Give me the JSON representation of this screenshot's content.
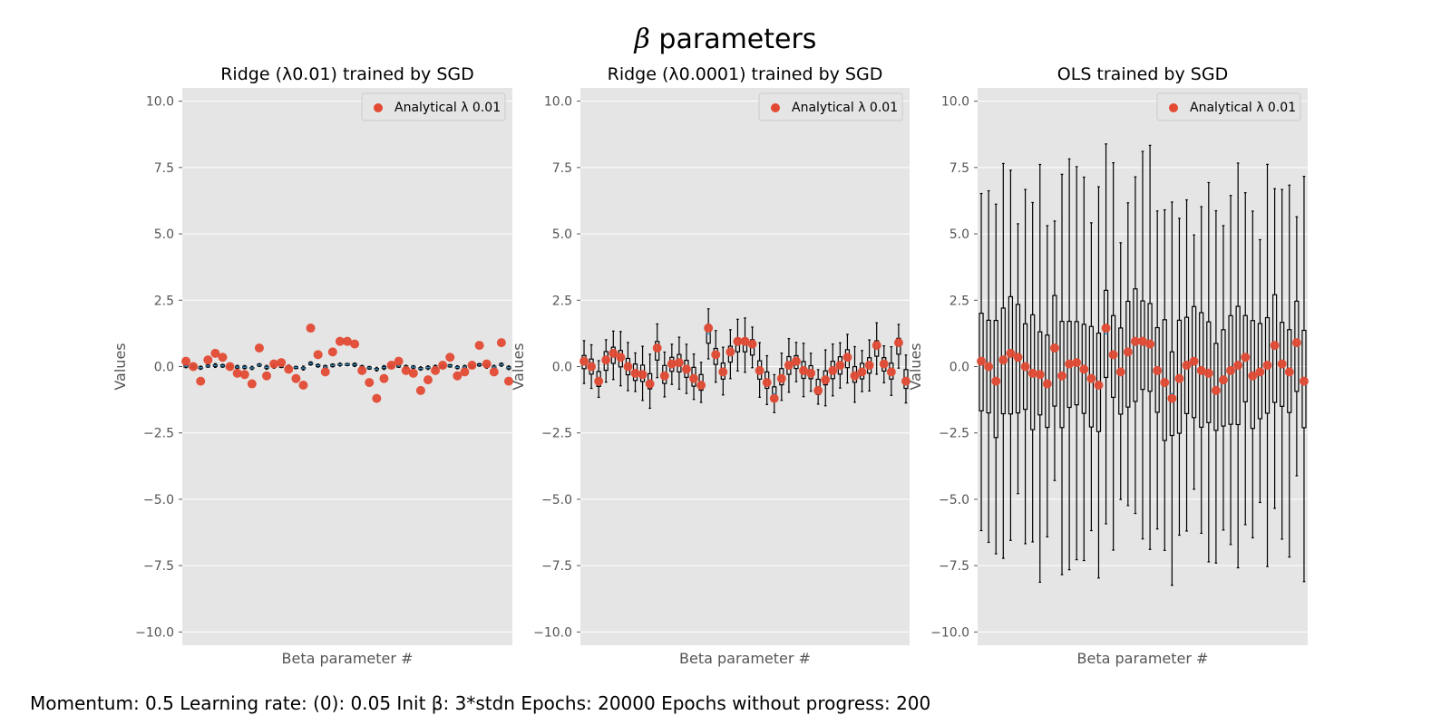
{
  "figure": {
    "title_symbol": "β",
    "title_text": " parameters",
    "footer": "Momentum: 0.5 Learning rate: (0): 0.05 Init β: 3*stdn Epochs: 20000 Epochs without progress: 200"
  },
  "colors": {
    "panel_bg": "#E5E5E5",
    "grid": "#FFFFFF",
    "marker": "#E24A33",
    "median_line": "#348ABD",
    "box_edge": "#000000",
    "text": "#555555"
  },
  "chart_data": [
    {
      "type": "box",
      "title": "Ridge (λ0.01) trained by SGD",
      "xlabel": "Beta parameter #",
      "ylabel": "Values",
      "ylim": [
        -10.5,
        10.5
      ],
      "yticks": [
        -10.0,
        -7.5,
        -5.0,
        -2.5,
        0.0,
        2.5,
        5.0,
        7.5,
        10.0
      ],
      "ytick_labels": [
        "−10.0",
        "−7.5",
        "−5.0",
        "−2.5",
        "0.0",
        "2.5",
        "5.0",
        "7.5",
        "10.0"
      ],
      "grid": true,
      "legend": {
        "label": "Analytical λ 0.01",
        "position": "upper right"
      },
      "n_params": 45,
      "analytical": [
        0.2,
        0.0,
        -0.55,
        0.25,
        0.5,
        0.35,
        0.0,
        -0.25,
        -0.3,
        -0.65,
        0.7,
        -0.35,
        0.1,
        0.15,
        -0.1,
        -0.45,
        -0.7,
        1.45,
        0.45,
        -0.2,
        0.55,
        0.95,
        0.95,
        0.85,
        -0.15,
        -0.6,
        -1.2,
        -0.45,
        0.05,
        0.2,
        -0.15,
        -0.25,
        -0.9,
        -0.5,
        -0.15,
        0.05,
        0.35,
        -0.35,
        -0.2,
        0.05,
        0.8,
        0.1,
        -0.2,
        0.9,
        -0.55
      ],
      "box_spread": 0.03,
      "whisker_spread": 0.06
    },
    {
      "type": "box",
      "title": "Ridge (λ0.0001) trained by SGD",
      "xlabel": "Beta parameter #",
      "ylabel": "Values",
      "ylim": [
        -10.5,
        10.5
      ],
      "yticks": [
        -10.0,
        -7.5,
        -5.0,
        -2.5,
        0.0,
        2.5,
        5.0,
        7.5,
        10.0
      ],
      "ytick_labels": [
        "−10.0",
        "−7.5",
        "−5.0",
        "−2.5",
        "0.0",
        "2.5",
        "5.0",
        "7.5",
        "10.0"
      ],
      "grid": true,
      "legend": {
        "label": "Analytical λ 0.01",
        "position": "upper right"
      },
      "n_params": 45,
      "analytical": [
        0.2,
        0.0,
        -0.55,
        0.25,
        0.5,
        0.35,
        0.0,
        -0.25,
        -0.3,
        -0.65,
        0.7,
        -0.35,
        0.1,
        0.15,
        -0.1,
        -0.45,
        -0.7,
        1.45,
        0.45,
        -0.2,
        0.55,
        0.95,
        0.95,
        0.85,
        -0.15,
        -0.6,
        -1.2,
        -0.45,
        0.05,
        0.2,
        -0.15,
        -0.25,
        -0.9,
        -0.5,
        -0.15,
        0.05,
        0.35,
        -0.35,
        -0.2,
        0.05,
        0.8,
        0.1,
        -0.2,
        0.9,
        -0.55
      ],
      "box_spread": 0.3,
      "whisker_spread": 0.85
    },
    {
      "type": "box",
      "title": "OLS trained by SGD",
      "xlabel": "Beta parameter #",
      "ylabel": "Values",
      "ylim": [
        -10.5,
        10.5
      ],
      "yticks": [
        -10.0,
        -7.5,
        -5.0,
        -2.5,
        0.0,
        2.5,
        5.0,
        7.5,
        10.0
      ],
      "ytick_labels": [
        "−10.0",
        "−7.5",
        "−5.0",
        "−2.5",
        "0.0",
        "2.5",
        "5.0",
        "7.5",
        "10.0"
      ],
      "grid": true,
      "legend": {
        "label": "Analytical λ 0.01",
        "position": "upper right"
      },
      "n_params": 45,
      "analytical": [
        0.2,
        0.0,
        -0.55,
        0.25,
        0.5,
        0.35,
        0.0,
        -0.25,
        -0.3,
        -0.65,
        0.7,
        -0.35,
        0.1,
        0.15,
        -0.1,
        -0.45,
        -0.7,
        1.45,
        0.45,
        -0.2,
        0.55,
        0.95,
        0.95,
        0.85,
        -0.15,
        -0.6,
        -1.2,
        -0.45,
        0.05,
        0.2,
        -0.15,
        -0.25,
        -0.9,
        -0.5,
        -0.15,
        0.05,
        0.35,
        -0.35,
        -0.2,
        0.05,
        0.8,
        0.1,
        -0.2,
        0.9,
        -0.55
      ],
      "box_spread": 1.9,
      "whisker_spread": 6.3
    }
  ]
}
